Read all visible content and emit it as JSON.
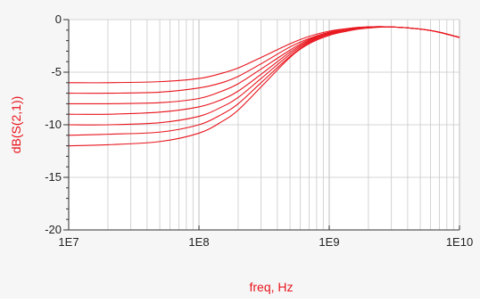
{
  "colors": {
    "background": "#f6f6f6",
    "plot_area": "#ffffff",
    "grid": "#c8c8c8",
    "axis": "#333333",
    "series": "#e8141c",
    "axis_label": "#e8141c"
  },
  "chart_data": {
    "type": "line",
    "title": "",
    "xlabel": "freq, Hz",
    "ylabel": "dB(S(2,1))",
    "x_scale": "log",
    "xlim": [
      10000000,
      10000000000
    ],
    "ylim": [
      -20,
      0
    ],
    "grid": true,
    "legend": "none",
    "x_ticks": [
      10000000,
      100000000,
      1000000000,
      10000000000
    ],
    "x_tick_labels": [
      "1E7",
      "1E8",
      "1E9",
      "1E10"
    ],
    "y_ticks": [
      0,
      -5,
      -10,
      -15,
      -20
    ],
    "y_tick_labels": [
      "0",
      "-5",
      "-10",
      "-15",
      "-20"
    ],
    "x": [
      10000000,
      20000000,
      50000000,
      100000000,
      150000000,
      200000000,
      300000000,
      500000000,
      700000000,
      1000000000,
      1500000000,
      2000000000,
      3000000000,
      5000000000,
      7000000000,
      10000000000
    ],
    "series": [
      {
        "values": [
          -6.0,
          -6.0,
          -5.9,
          -5.6,
          -5.1,
          -4.6,
          -3.6,
          -2.3,
          -1.6,
          -1.1,
          -0.8,
          -0.7,
          -0.7,
          -0.9,
          -1.2,
          -1.7
        ]
      },
      {
        "values": [
          -7.0,
          -7.0,
          -6.9,
          -6.5,
          -6.0,
          -5.4,
          -4.2,
          -2.6,
          -1.8,
          -1.2,
          -0.8,
          -0.7,
          -0.7,
          -0.9,
          -1.2,
          -1.7
        ]
      },
      {
        "values": [
          -8.0,
          -8.0,
          -7.9,
          -7.5,
          -6.8,
          -6.1,
          -4.7,
          -2.9,
          -1.9,
          -1.3,
          -0.9,
          -0.7,
          -0.7,
          -0.9,
          -1.2,
          -1.7
        ]
      },
      {
        "values": [
          -9.0,
          -9.0,
          -8.8,
          -8.3,
          -7.6,
          -6.8,
          -5.2,
          -3.1,
          -2.0,
          -1.3,
          -0.9,
          -0.7,
          -0.7,
          -0.9,
          -1.2,
          -1.7
        ]
      },
      {
        "values": [
          -10.0,
          -10.0,
          -9.8,
          -9.2,
          -8.3,
          -7.4,
          -5.6,
          -3.3,
          -2.1,
          -1.4,
          -0.9,
          -0.7,
          -0.7,
          -0.9,
          -1.2,
          -1.7
        ]
      },
      {
        "values": [
          -11.0,
          -10.9,
          -10.7,
          -10.0,
          -9.0,
          -8.0,
          -6.0,
          -3.5,
          -2.2,
          -1.4,
          -0.9,
          -0.7,
          -0.7,
          -0.9,
          -1.2,
          -1.7
        ]
      },
      {
        "values": [
          -12.0,
          -11.9,
          -11.6,
          -10.8,
          -9.7,
          -8.6,
          -6.4,
          -3.6,
          -2.3,
          -1.5,
          -1.0,
          -0.8,
          -0.7,
          -0.9,
          -1.2,
          -1.7
        ]
      }
    ]
  }
}
